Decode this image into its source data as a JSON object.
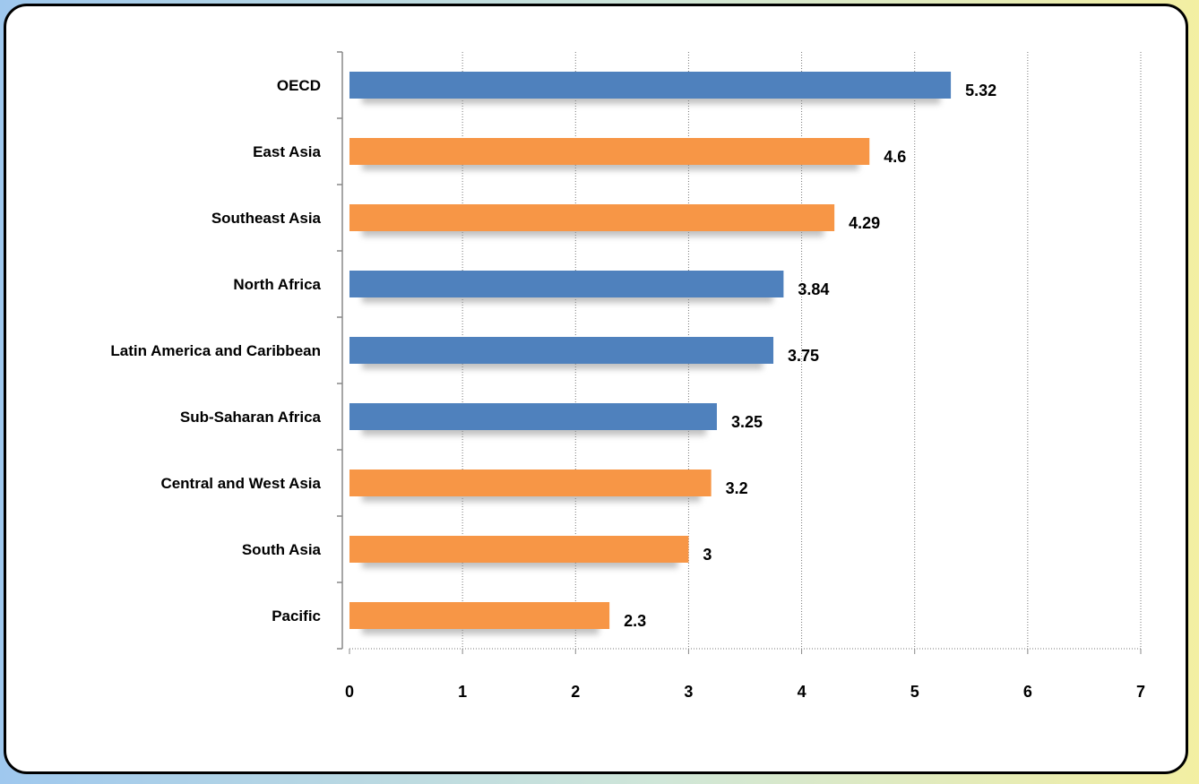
{
  "chart_data": {
    "type": "bar",
    "orientation": "horizontal",
    "categories": [
      "OECD",
      "East Asia",
      "Southeast  Asia",
      "North Africa",
      "Latin America and Caribbean",
      "Sub-Saharan  Africa",
      "Central and West Asia",
      "South Asia",
      "Pacific"
    ],
    "values": [
      5.32,
      4.6,
      4.29,
      3.84,
      3.75,
      3.25,
      3.2,
      3,
      2.3
    ],
    "value_labels": [
      "5.32",
      "4.6",
      "4.29",
      "3.84",
      "3.75",
      "3.25",
      "3.2",
      "3",
      "2.3"
    ],
    "bar_groups": [
      "blue",
      "orange",
      "orange",
      "blue",
      "blue",
      "blue",
      "orange",
      "orange",
      "orange"
    ],
    "colors": {
      "blue": "#4f81bd",
      "orange": "#f79646"
    },
    "xticks": [
      0,
      1,
      2,
      3,
      4,
      5,
      6,
      7
    ],
    "xlim": [
      0,
      7
    ],
    "grid": "vertical dotted",
    "title": "",
    "xlabel": "",
    "ylabel": ""
  }
}
